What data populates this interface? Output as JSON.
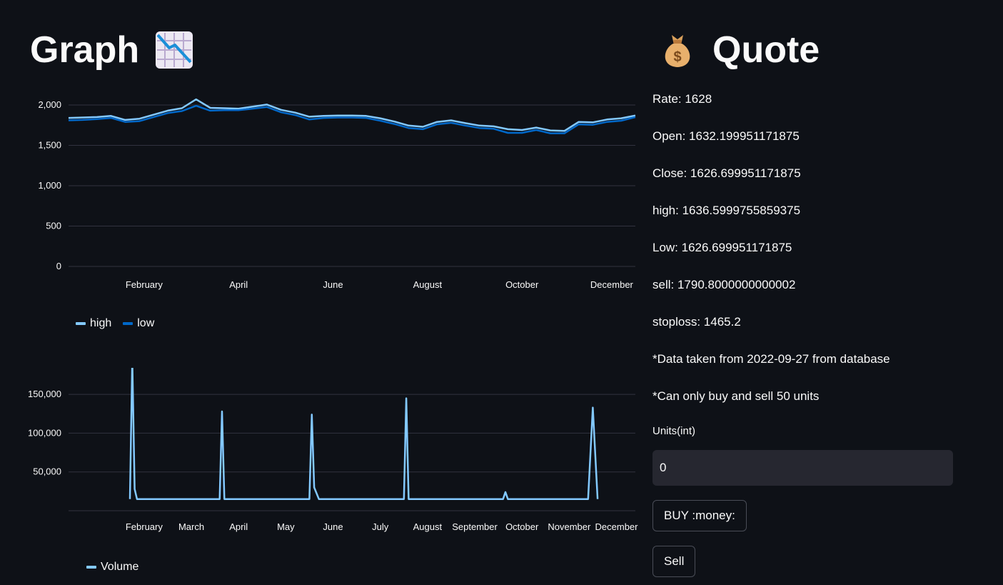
{
  "graph_section": {
    "title": "Graph"
  },
  "quote_section": {
    "title": "Quote",
    "lines": [
      "Rate: 1628",
      "Open: 1632.199951171875",
      "Close: 1626.699951171875",
      "high: 1636.5999755859375",
      "Low: 1626.699951171875",
      "sell: 1790.8000000000002",
      "stoploss: 1465.2",
      "*Data taken from 2022-09-27 from database",
      "*Can only buy and sell 50 units"
    ],
    "units_label": "Units(int)",
    "units_value": "0",
    "buy_label": "BUY :money:",
    "sell_label": "Sell"
  },
  "icons": {
    "graph": "chart-decreasing-icon",
    "quote": "money-bag-icon"
  },
  "colors": {
    "high": "#83c9ff",
    "low": "#0068c9",
    "volume": "#83c9ff",
    "background": "#0e1117"
  },
  "chart_data": [
    {
      "type": "line",
      "ylim": [
        0,
        2000
      ],
      "yticks": [
        "2,000",
        "1,500",
        "1,000",
        "500",
        "0"
      ],
      "ytick_values": [
        2000,
        1500,
        1000,
        500,
        0
      ],
      "xticks": [
        "February",
        "April",
        "June",
        "August",
        "October",
        "December"
      ],
      "xtick_positions": [
        1.6,
        3.6,
        5.6,
        7.6,
        9.6,
        11.5
      ],
      "x": [
        0,
        0.3,
        0.6,
        0.9,
        1.2,
        1.5,
        1.8,
        2.1,
        2.4,
        2.7,
        3.0,
        3.3,
        3.6,
        3.9,
        4.2,
        4.5,
        4.8,
        5.1,
        5.4,
        5.7,
        6.0,
        6.3,
        6.6,
        6.9,
        7.2,
        7.5,
        7.8,
        8.1,
        8.4,
        8.7,
        9.0,
        9.3,
        9.6,
        9.9,
        10.2,
        10.5,
        10.8,
        11.1,
        11.4,
        11.7,
        12.0
      ],
      "series": [
        {
          "name": "high",
          "values": [
            1840,
            1845,
            1850,
            1865,
            1815,
            1830,
            1880,
            1930,
            1960,
            2070,
            1965,
            1960,
            1955,
            1980,
            2005,
            1940,
            1905,
            1855,
            1865,
            1870,
            1870,
            1865,
            1835,
            1795,
            1745,
            1730,
            1790,
            1810,
            1775,
            1745,
            1735,
            1700,
            1690,
            1720,
            1685,
            1680,
            1790,
            1785,
            1820,
            1835,
            1870
          ]
        },
        {
          "name": "low",
          "values": [
            1810,
            1815,
            1825,
            1840,
            1790,
            1800,
            1850,
            1900,
            1925,
            1990,
            1930,
            1935,
            1935,
            1955,
            1975,
            1910,
            1875,
            1820,
            1840,
            1845,
            1845,
            1840,
            1805,
            1765,
            1715,
            1700,
            1760,
            1780,
            1745,
            1715,
            1705,
            1655,
            1655,
            1690,
            1650,
            1650,
            1760,
            1755,
            1790,
            1805,
            1850
          ]
        }
      ]
    },
    {
      "type": "line",
      "ylim": [
        0,
        175000
      ],
      "yticks": [
        "150,000",
        "100,000",
        "50,000"
      ],
      "ytick_values": [
        150000,
        100000,
        50000
      ],
      "xticks": [
        "February",
        "March",
        "April",
        "May",
        "June",
        "July",
        "August",
        "September",
        "October",
        "November",
        "December"
      ],
      "xtick_positions": [
        1.6,
        2.6,
        3.6,
        4.6,
        5.6,
        6.6,
        7.6,
        8.6,
        9.6,
        10.6,
        11.6
      ],
      "x": [
        1.3,
        1.35,
        1.4,
        1.45,
        1.5,
        3.2,
        3.25,
        3.3,
        5.1,
        5.15,
        5.2,
        5.3,
        7.1,
        7.15,
        7.2,
        9.2,
        9.25,
        9.3,
        11.0,
        11.1,
        11.2
      ],
      "series": [
        {
          "name": "Volume",
          "values": [
            15000,
            195000,
            28000,
            15000,
            15000,
            15000,
            128000,
            15000,
            15000,
            124000,
            30000,
            15000,
            15000,
            145000,
            15000,
            15000,
            24000,
            15000,
            15000,
            133000,
            15000
          ]
        }
      ]
    }
  ],
  "legend1": [
    {
      "name": "high"
    },
    {
      "name": "low"
    }
  ],
  "legend2": [
    {
      "name": "Volume"
    }
  ]
}
